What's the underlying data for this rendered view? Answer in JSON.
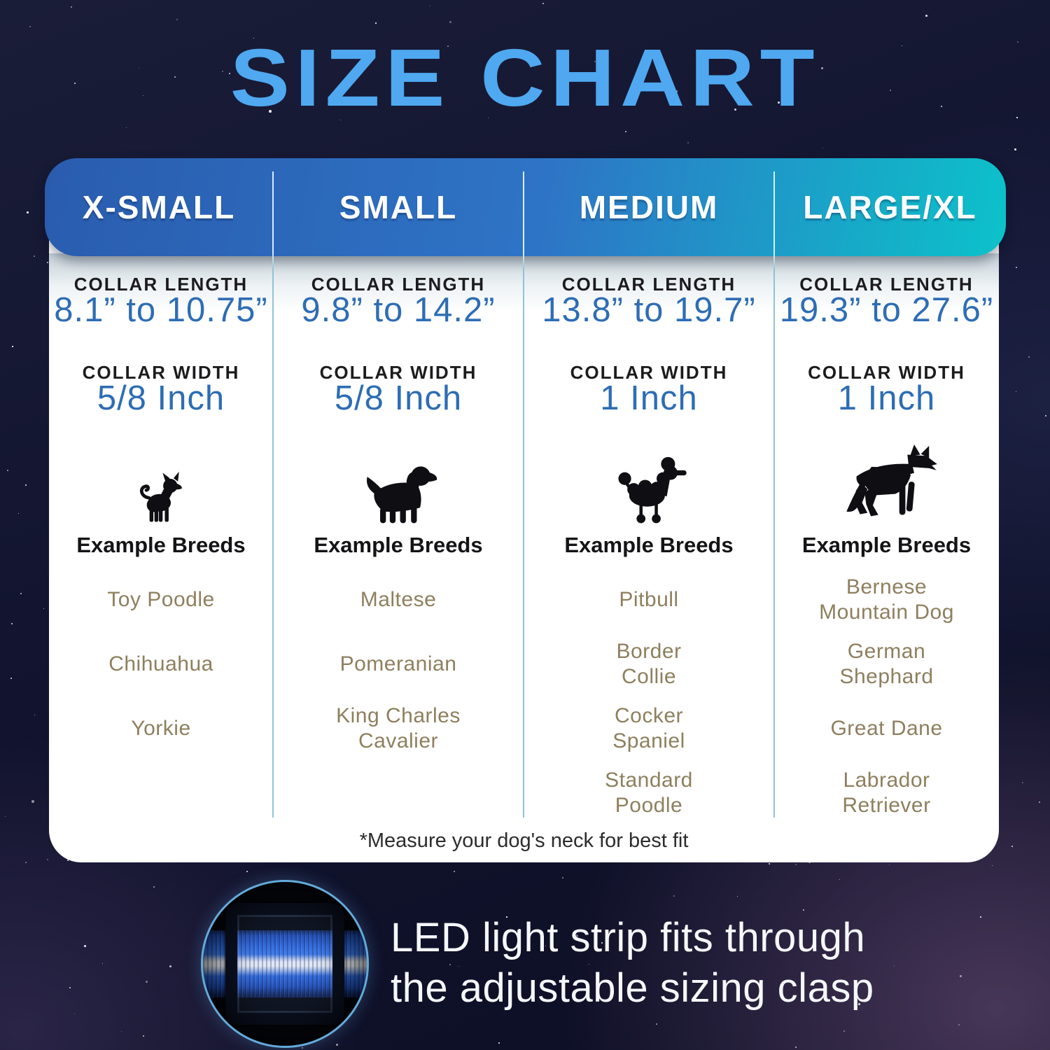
{
  "title": "SIZE CHART",
  "table": {
    "columns": [
      {
        "header": "X-SMALL",
        "collar_length_label": "COLLAR LENGTH",
        "collar_length": "8.1” to 10.75”",
        "collar_width_label": "COLLAR WIDTH",
        "collar_width": "5/8 Inch",
        "icon": "chihuahua-silhouette-icon",
        "breeds_label": "Example Breeds",
        "breeds": [
          "Toy Poodle",
          "Chihuahua",
          "Yorkie"
        ]
      },
      {
        "header": "SMALL",
        "collar_length_label": "COLLAR LENGTH",
        "collar_length": "9.8” to 14.2”",
        "collar_width_label": "COLLAR WIDTH",
        "collar_width": "5/8 Inch",
        "icon": "cavalier-spaniel-silhouette-icon",
        "breeds_label": "Example Breeds",
        "breeds": [
          "Maltese",
          "Pomeranian",
          "King Charles\nCavalier"
        ]
      },
      {
        "header": "MEDIUM",
        "collar_length_label": "COLLAR LENGTH",
        "collar_length": "13.8” to 19.7”",
        "collar_width_label": "COLLAR WIDTH",
        "collar_width": "1 Inch",
        "icon": "poodle-silhouette-icon",
        "breeds_label": "Example Breeds",
        "breeds": [
          "Pitbull",
          "Border\nCollie",
          "Cocker\nSpaniel",
          "Standard\nPoodle"
        ]
      },
      {
        "header": "LARGE/XL",
        "collar_length_label": "COLLAR LENGTH",
        "collar_length": "19.3” to 27.6”",
        "collar_width_label": "COLLAR WIDTH",
        "collar_width": "1 Inch",
        "icon": "german-shepherd-silhouette-icon",
        "breeds_label": "Example Breeds",
        "breeds": [
          "Bernese\nMountain Dog",
          "German\nShephard",
          "Great Dane",
          "Labrador\nRetriever"
        ]
      }
    ],
    "footnote": "*Measure your dog's neck for best fit"
  },
  "led_note": {
    "line1": "LED light strip fits through",
    "line2": "the adjustable sizing clasp"
  },
  "colors": {
    "title_blue": "#4FA8F0",
    "header_gradient_blue": "#2A5CAE",
    "header_gradient_teal": "#0CC2CA",
    "value_blue": "#2E6DB4",
    "breed_brown": "#8E7F5E",
    "divider_teal": "#8FC3D6",
    "background_navy": "#121430",
    "circle_ring_blue": "#64ABDB",
    "collar_blue": "#2C67DC",
    "collar_stripe_white": "#EEF1F5"
  },
  "chart_data": {
    "type": "table",
    "title": "SIZE CHART",
    "columns": [
      "X-SMALL",
      "SMALL",
      "MEDIUM",
      "LARGE/XL"
    ],
    "rows": [
      {
        "label": "Collar Length",
        "values": [
          "8.1” to 10.75”",
          "9.8” to 14.2”",
          "13.8” to 19.7”",
          "19.3” to 27.6”"
        ]
      },
      {
        "label": "Collar Width",
        "values": [
          "5/8 Inch",
          "5/8 Inch",
          "1 Inch",
          "1 Inch"
        ]
      },
      {
        "label": "Example Breeds",
        "values": [
          "Toy Poodle, Chihuahua, Yorkie",
          "Maltese, Pomeranian, King Charles Cavalier",
          "Pitbull, Border Collie, Cocker Spaniel, Standard Poodle",
          "Bernese Mountain Dog, German Shephard, Great Dane, Labrador Retriever"
        ]
      }
    ],
    "footnote": "*Measure your dog's neck for best fit"
  }
}
